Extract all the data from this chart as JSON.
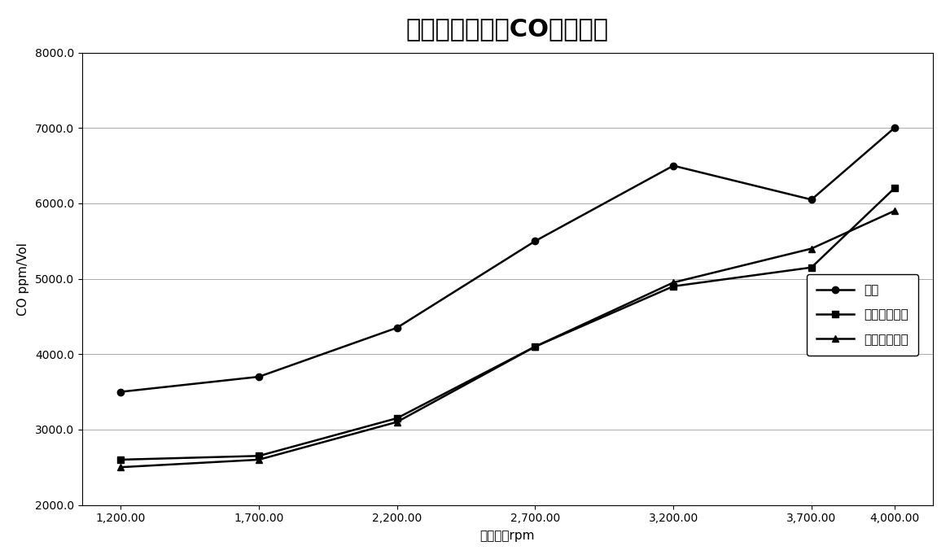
{
  "title": "不同转速下油品CO排放对比",
  "xlabel": "输出转速rpm",
  "ylabel": "CO ppm/Vol",
  "x_values": [
    1200,
    1700,
    2200,
    2700,
    3200,
    3700,
    4000
  ],
  "series": [
    {
      "name": "汽油",
      "values": [
        3500,
        3700,
        4350,
        5500,
        6500,
        6050,
        7000
      ],
      "color": "#000000",
      "marker": "o",
      "linewidth": 1.8,
      "markersize": 6
    },
    {
      "name": "普通甲醇汽油",
      "values": [
        2600,
        2650,
        3150,
        4100,
        4900,
        5150,
        6200
      ],
      "color": "#000000",
      "marker": "s",
      "linewidth": 1.8,
      "markersize": 6
    },
    {
      "name": "加剂甲醇汽油",
      "values": [
        2500,
        2600,
        3100,
        4100,
        4950,
        5400,
        5900
      ],
      "color": "#000000",
      "marker": "^",
      "linewidth": 1.8,
      "markersize": 6
    }
  ],
  "ylim": [
    2000,
    8000
  ],
  "yticks": [
    2000,
    3000,
    4000,
    5000,
    6000,
    7000,
    8000
  ],
  "xtick_labels": [
    "1,200.00",
    "1,700.00",
    "2,200.00",
    "2,700.00",
    "3,200.00",
    "3,700.00",
    "4,000.00"
  ],
  "background_color": "#ffffff",
  "title_fontsize": 22,
  "axis_label_fontsize": 11,
  "tick_fontsize": 10,
  "legend_fontsize": 11
}
